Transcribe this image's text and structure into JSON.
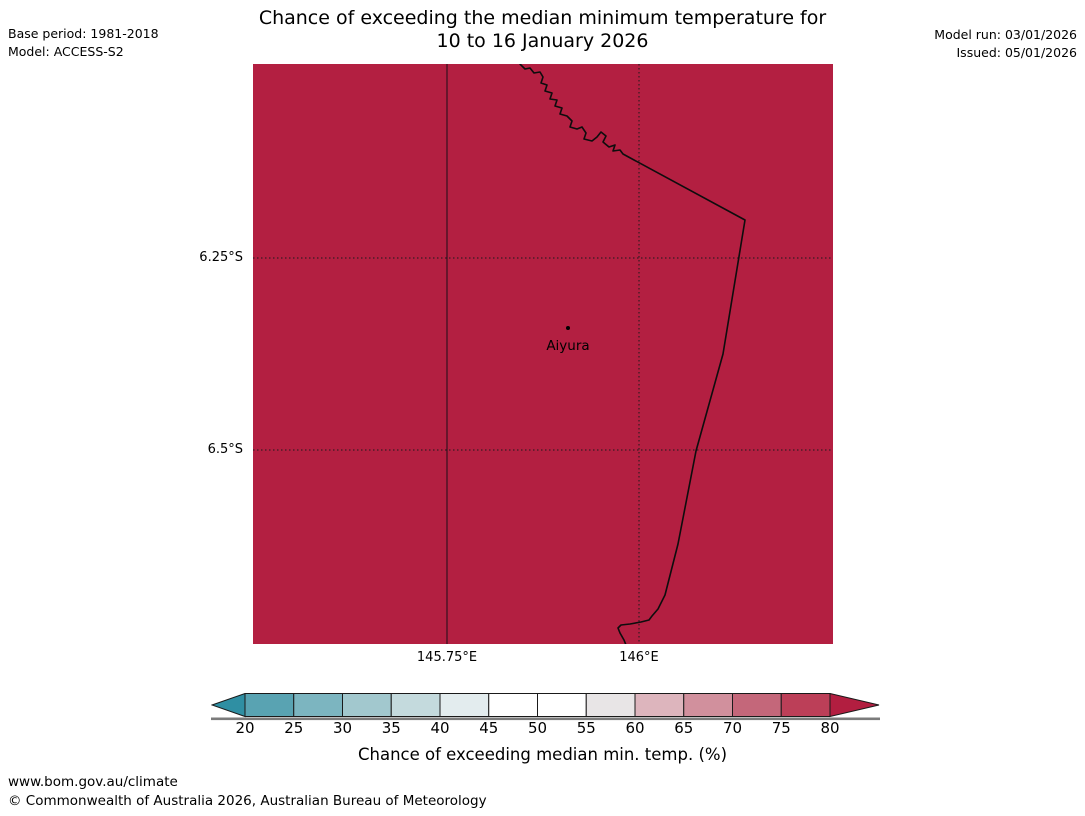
{
  "header": {
    "title_line1": "Chance of exceeding the median minimum temperature for",
    "title_line2": "10 to 16 January 2026",
    "base_period": "Base period: 1981-2018",
    "model": "Model: ACCESS-S2",
    "model_run": "Model run: 03/01/2026",
    "issued": "Issued: 05/01/2026"
  },
  "map": {
    "fill_color": "#B31F41",
    "coast_color": "#0d0d0d",
    "location": {
      "label": "Aiyura"
    },
    "x_tick_labels": [
      "145.75°E",
      "146°E"
    ],
    "y_tick_labels": [
      "6.25°S",
      "6.5°S"
    ]
  },
  "colorbar": {
    "caption": "Chance of exceeding median min. temp. (%)",
    "ticks": [
      "20",
      "25",
      "30",
      "35",
      "40",
      "45",
      "50",
      "55",
      "60",
      "65",
      "70",
      "75",
      "80"
    ],
    "cells": [
      "#59A3B2",
      "#7CB5C0",
      "#A2C8CE",
      "#C4DADD",
      "#E3ECEE",
      "#FFFFFF",
      "#FFFFFF",
      "#E8E5E6",
      "#DDB5BD",
      "#D1909D",
      "#C4677A",
      "#BC3F58"
    ],
    "arrow_left_color": "#2F8FA3",
    "arrow_right_color": "#B21E40",
    "underline_color": "#7b7b7b"
  },
  "footer": {
    "url": "www.bom.gov.au/climate",
    "copyright": "© Commonwealth of Australia 2026, Australian Bureau of Meteorology"
  },
  "chart_data": {
    "type": "heatmap",
    "title": "Chance of exceeding the median minimum temperature for 10 to 16 January 2026",
    "region_uniform_value": ">80",
    "units": "%",
    "x_ticks": [
      "145.75°E",
      "146°E"
    ],
    "y_ticks": [
      "6.25°S",
      "6.5°S"
    ],
    "marked_location": "Aiyura",
    "colorbar": {
      "label": "Chance of exceeding median min. temp. (%)",
      "tick_values": [
        20,
        25,
        30,
        35,
        40,
        45,
        50,
        55,
        60,
        65,
        70,
        75,
        80
      ],
      "open_ended": true
    }
  }
}
